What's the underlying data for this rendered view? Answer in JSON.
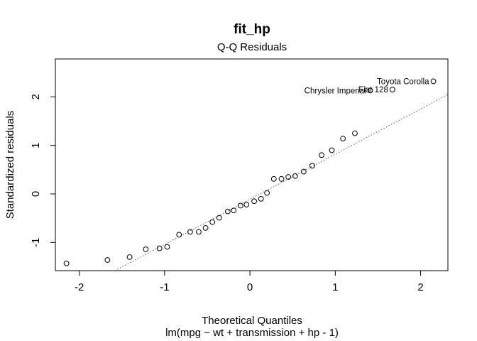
{
  "chart_data": {
    "type": "scatter",
    "title": "fit_hp",
    "subtitle": "Q-Q Residuals",
    "xlabel": "Theoretical Quantiles",
    "ylabel": "Standardized residuals",
    "caption": "lm(mpg ~ wt + transmission + hp - 1)",
    "xlim": [
      -2.28,
      2.32
    ],
    "ylim": [
      -1.58,
      2.78
    ],
    "x_ticks": [
      -2,
      -1,
      0,
      1,
      2
    ],
    "x_tick_labels": [
      "-2",
      "-1",
      "0",
      "1",
      "2"
    ],
    "y_ticks": [
      -1,
      0,
      1,
      2
    ],
    "y_tick_labels": [
      "-1",
      "0",
      "1",
      "2"
    ],
    "grid": false,
    "legend": "none",
    "reference_line": {
      "style": "dotted",
      "color": "#555555",
      "intercept": -0.11,
      "slope": 0.93
    },
    "points": [
      {
        "x": -2.15,
        "y": -1.43
      },
      {
        "x": -1.67,
        "y": -1.36
      },
      {
        "x": -1.41,
        "y": -1.3
      },
      {
        "x": -1.22,
        "y": -1.14
      },
      {
        "x": -1.06,
        "y": -1.12
      },
      {
        "x": -0.97,
        "y": -1.09
      },
      {
        "x": -0.83,
        "y": -0.84
      },
      {
        "x": -0.7,
        "y": -0.78
      },
      {
        "x": -0.6,
        "y": -0.78
      },
      {
        "x": -0.52,
        "y": -0.7
      },
      {
        "x": -0.44,
        "y": -0.58
      },
      {
        "x": -0.36,
        "y": -0.49
      },
      {
        "x": -0.26,
        "y": -0.36
      },
      {
        "x": -0.19,
        "y": -0.34
      },
      {
        "x": -0.11,
        "y": -0.24
      },
      {
        "x": -0.04,
        "y": -0.22
      },
      {
        "x": 0.05,
        "y": -0.15
      },
      {
        "x": 0.13,
        "y": -0.1
      },
      {
        "x": 0.2,
        "y": 0.02
      },
      {
        "x": 0.28,
        "y": 0.31
      },
      {
        "x": 0.37,
        "y": 0.31
      },
      {
        "x": 0.45,
        "y": 0.35
      },
      {
        "x": 0.53,
        "y": 0.37
      },
      {
        "x": 0.63,
        "y": 0.46
      },
      {
        "x": 0.73,
        "y": 0.58
      },
      {
        "x": 0.84,
        "y": 0.8
      },
      {
        "x": 0.96,
        "y": 0.9
      },
      {
        "x": 1.09,
        "y": 1.14
      },
      {
        "x": 1.23,
        "y": 1.25
      },
      {
        "x": 1.41,
        "y": 2.13,
        "label": "Chrysler Imperial"
      },
      {
        "x": 1.67,
        "y": 2.15,
        "label": "Fiat 128"
      },
      {
        "x": 2.15,
        "y": 2.32,
        "label": "Toyota Corolla"
      }
    ]
  }
}
